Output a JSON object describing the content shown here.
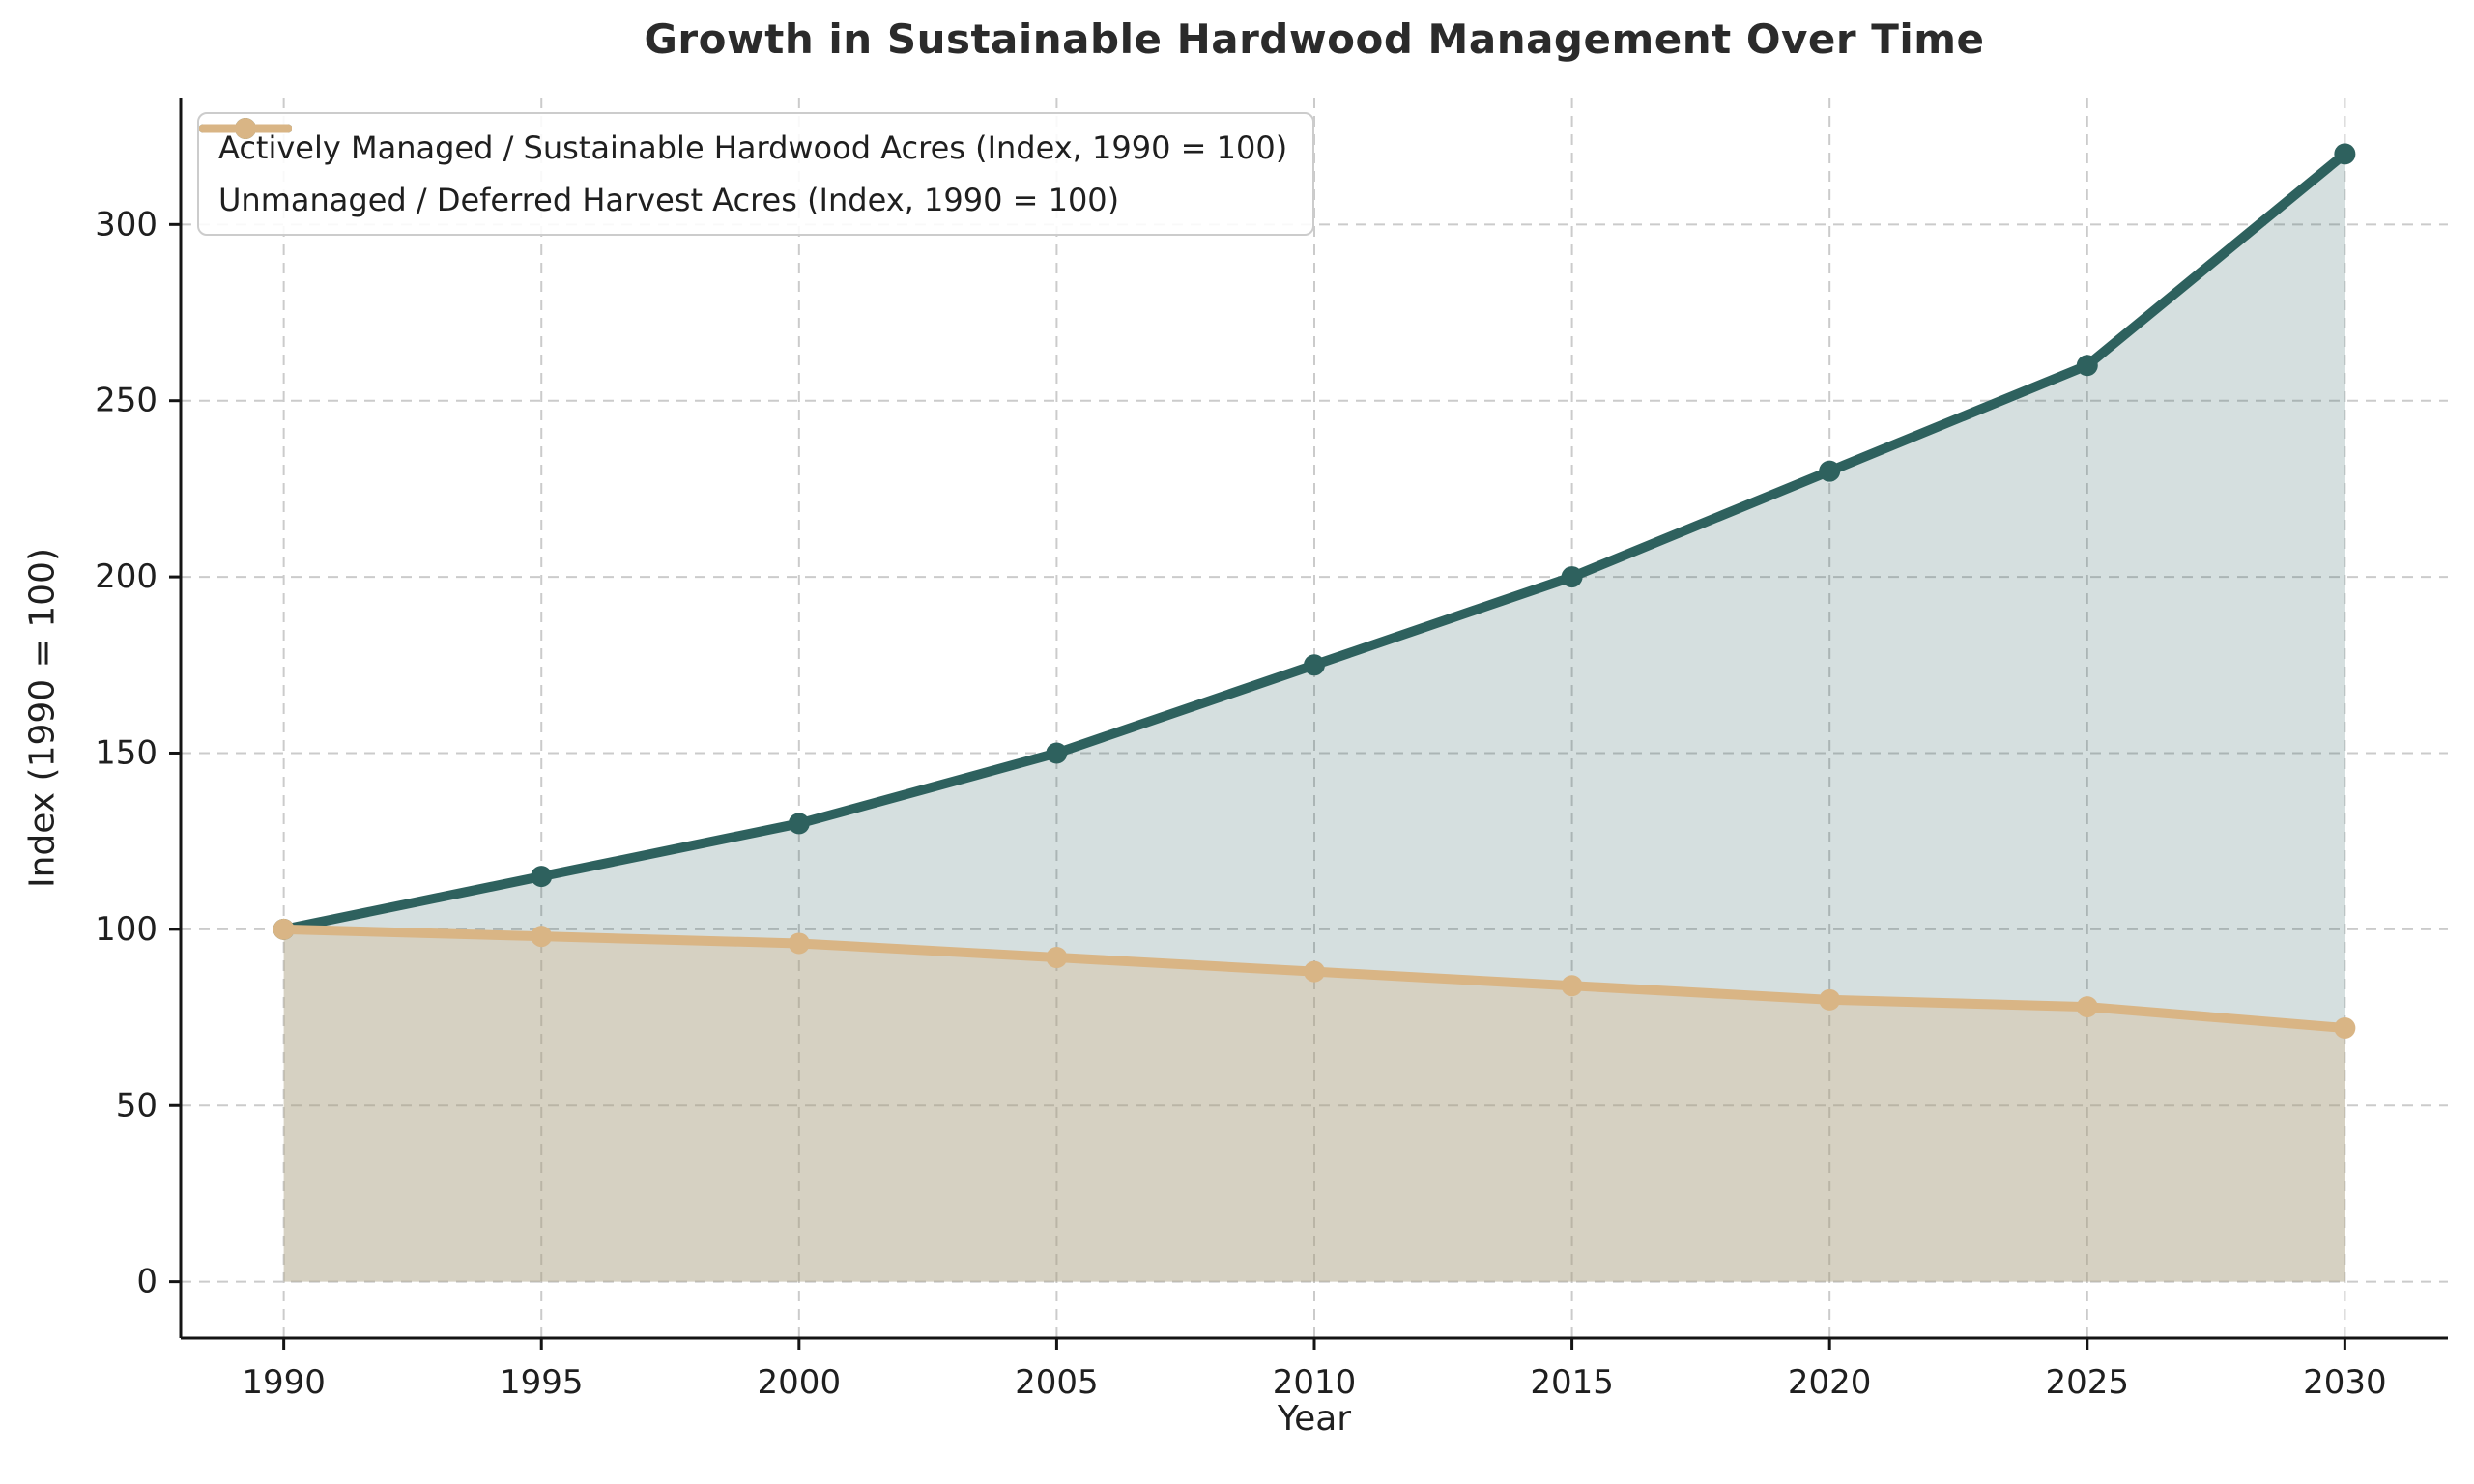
{
  "figure": {
    "title": "Growth in Sustainable Hardwood Management Over Time",
    "xlabel": "Year",
    "ylabel": "Index (1990 = 100)"
  },
  "chart_data": {
    "type": "line",
    "title": "Growth in Sustainable Hardwood Management Over Time",
    "xlabel": "Year",
    "ylabel": "Index (1990 = 100)",
    "x": [
      1990,
      1995,
      2000,
      2005,
      2010,
      2015,
      2020,
      2025,
      2030
    ],
    "series": [
      {
        "name": "Actively Managed / Sustainable Hardwood Acres (Index, 1990 = 100)",
        "values": [
          100,
          115,
          130,
          150,
          175,
          200,
          230,
          260,
          320
        ],
        "color": "#2e615e",
        "fill_color": "rgba(46,97,94,0.20)",
        "marker": "circle"
      },
      {
        "name": "Unmanaged / Deferred Harvest Acres (Index, 1990 = 100)",
        "values": [
          100,
          98,
          96,
          92,
          88,
          84,
          80,
          78,
          72
        ],
        "color": "#d9b585",
        "fill_color": "rgba(217,181,134,0.32)",
        "marker": "circle"
      }
    ],
    "xticks": [
      1990,
      1995,
      2000,
      2005,
      2010,
      2015,
      2020,
      2025,
      2030
    ],
    "yticks": [
      0,
      50,
      100,
      150,
      200,
      250,
      300
    ],
    "xlim": [
      1988,
      2032
    ],
    "ylim": [
      -16,
      336
    ],
    "fill_baseline": 0,
    "grid": true,
    "grid_style": "dashed",
    "legend_position": "upper left"
  },
  "style": {
    "grid_color": "#cbcbcb",
    "spine_color": "#141414",
    "tick_label_color": "#1f1f1f",
    "title_color": "#2b2b2b"
  }
}
